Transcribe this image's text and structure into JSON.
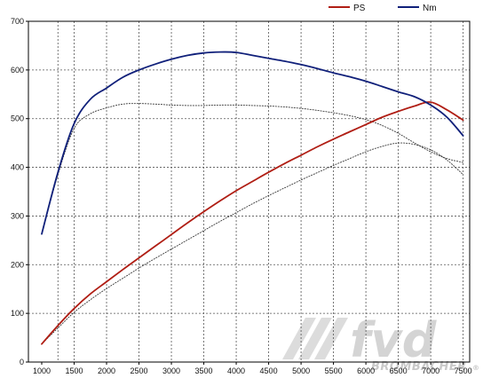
{
  "chart_data": {
    "type": "line",
    "xlim": [
      1000,
      7500
    ],
    "ylim": [
      0,
      700
    ],
    "x_ticks": [
      1000,
      1500,
      2000,
      2500,
      3000,
      3500,
      4000,
      4500,
      5000,
      5500,
      6000,
      6500,
      7000,
      7500
    ],
    "y_ticks": [
      0,
      100,
      200,
      300,
      400,
      500,
      600,
      700
    ],
    "grid": true,
    "legend_position": "top-right",
    "series": [
      {
        "name": "PS",
        "color": "#b01e14",
        "style": "solid",
        "x": [
          1000,
          1250,
          1500,
          1750,
          2000,
          2250,
          2500,
          2750,
          3000,
          3250,
          3500,
          3750,
          4000,
          4250,
          4500,
          4750,
          5000,
          5250,
          5500,
          5750,
          6000,
          6250,
          6500,
          6750,
          7000,
          7250,
          7500
        ],
        "values": [
          37,
          75,
          110,
          140,
          165,
          190,
          214,
          238,
          262,
          286,
          309,
          331,
          352,
          371,
          390,
          408,
          425,
          442,
          458,
          473,
          488,
          503,
          515,
          526,
          534,
          518,
          497
        ]
      },
      {
        "name": "Nm",
        "color": "#10207a",
        "style": "solid",
        "x": [
          1000,
          1250,
          1500,
          1750,
          2000,
          2250,
          2500,
          2750,
          3000,
          3250,
          3500,
          3750,
          4000,
          4250,
          4500,
          4750,
          5000,
          5250,
          5500,
          5750,
          6000,
          6250,
          6500,
          6750,
          7000,
          7250,
          7500
        ],
        "values": [
          263,
          390,
          490,
          540,
          563,
          585,
          600,
          612,
          622,
          630,
          635,
          637,
          636,
          630,
          624,
          618,
          611,
          603,
          594,
          586,
          577,
          566,
          555,
          545,
          528,
          503,
          465
        ]
      },
      {
        "color": "#333333",
        "style": "dotted",
        "x": [
          1000,
          1250,
          1500,
          1750,
          2000,
          2250,
          2500,
          2750,
          3000,
          3250,
          3500,
          3750,
          4000,
          4250,
          4500,
          4750,
          5000,
          5250,
          5500,
          5750,
          6000,
          6250,
          6500,
          6750,
          7000,
          7250,
          7500
        ],
        "values": [
          37,
          70,
          102,
          128,
          151,
          172,
          193,
          213,
          232,
          251,
          270,
          289,
          307,
          325,
          342,
          358,
          374,
          389,
          404,
          418,
          432,
          443,
          450,
          447,
          436,
          415,
          385
        ]
      },
      {
        "color": "#333333",
        "style": "dotted",
        "x": [
          1000,
          1250,
          1500,
          1750,
          2000,
          2250,
          2500,
          2750,
          3000,
          3250,
          3500,
          3750,
          4000,
          4250,
          4500,
          4750,
          5000,
          5250,
          5500,
          5750,
          6000,
          6250,
          6500,
          6750,
          7000,
          7250,
          7500
        ],
        "values": [
          263,
          385,
          480,
          510,
          522,
          530,
          531,
          530,
          528,
          527,
          527,
          528,
          528,
          527,
          526,
          524,
          521,
          517,
          512,
          506,
          498,
          486,
          470,
          450,
          432,
          418,
          410
        ]
      }
    ]
  },
  "watermark": {
    "logo_text": "fvd",
    "brand_text": "BROMBACHER",
    "registered_mark": "®"
  }
}
